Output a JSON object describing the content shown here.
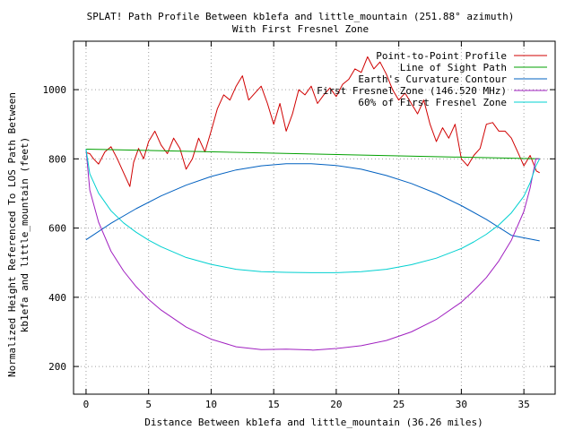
{
  "chart_data": {
    "type": "line",
    "title": "SPLAT! Path Profile Between kb1efa and little_mountain (251.88° azimuth)",
    "subtitle": "With First Fresnel Zone",
    "xlabel": "Distance Between kb1efa and little_mountain (36.26 miles)",
    "ylabel": [
      "Normalized Height Referenced To LOS Path Between",
      "kb1efa and little_mountain (feet)"
    ],
    "xlim": [
      -1,
      37.5
    ],
    "ylim": [
      120,
      1140
    ],
    "xticks": [
      0,
      5,
      10,
      15,
      20,
      25,
      30,
      35
    ],
    "yticks": [
      200,
      400,
      600,
      800,
      1000
    ],
    "grid": true,
    "legend_position": "top-right",
    "series": [
      {
        "name": "Point-to-Point Profile",
        "color": "#d00000",
        "x": [
          0,
          0.3,
          0.6,
          1.0,
          1.5,
          2.0,
          2.5,
          3.0,
          3.5,
          3.8,
          4.2,
          4.6,
          5.0,
          5.5,
          6.0,
          6.5,
          7.0,
          7.5,
          8.0,
          8.5,
          9.0,
          9.5,
          10.0,
          10.5,
          11.0,
          11.5,
          12.0,
          12.5,
          13.0,
          13.5,
          14.0,
          14.5,
          15.0,
          15.5,
          16.0,
          16.5,
          17.0,
          17.5,
          18.0,
          18.5,
          19.0,
          19.5,
          20.0,
          20.5,
          21.0,
          21.5,
          22.0,
          22.5,
          23.0,
          23.5,
          24.0,
          24.5,
          25.0,
          25.5,
          26.0,
          26.5,
          27.0,
          27.5,
          28.0,
          28.5,
          29.0,
          29.5,
          30.0,
          30.5,
          31.0,
          31.5,
          32.0,
          32.5,
          33.0,
          33.5,
          34.0,
          34.5,
          35.0,
          35.5,
          36.0,
          36.26
        ],
        "y": [
          818,
          815,
          800,
          785,
          820,
          835,
          800,
          760,
          720,
          790,
          830,
          800,
          850,
          880,
          840,
          815,
          860,
          830,
          770,
          800,
          860,
          820,
          880,
          945,
          985,
          970,
          1010,
          1040,
          970,
          990,
          1010,
          960,
          900,
          960,
          880,
          930,
          1000,
          985,
          1010,
          960,
          985,
          1005,
          980,
          1015,
          1030,
          1060,
          1050,
          1095,
          1060,
          1080,
          1045,
          1000,
          970,
          990,
          960,
          930,
          970,
          900,
          850,
          890,
          860,
          900,
          800,
          780,
          810,
          830,
          900,
          905,
          880,
          880,
          860,
          820,
          780,
          810,
          765,
          760
        ]
      },
      {
        "name": "Line of Sight Path",
        "color": "#00a000",
        "x": [
          0,
          36.26
        ],
        "y": [
          828,
          800
        ]
      },
      {
        "name": "Earth's Curvature Contour",
        "color": "#0060c0",
        "x": [
          0,
          2,
          4,
          6,
          8,
          10,
          12,
          14,
          16,
          18,
          20,
          22,
          24,
          26,
          28,
          30,
          32,
          34,
          36.26
        ],
        "y": [
          566,
          614,
          656,
          693,
          724,
          749,
          768,
          780,
          786,
          786,
          781,
          770,
          752,
          729,
          700,
          665,
          625,
          579,
          563
        ]
      },
      {
        "name": "First Fresnel Zone (146.520 MHz)",
        "color": "#a020c0",
        "x": [
          0,
          0.3,
          1,
          2,
          3,
          4,
          5,
          6,
          8,
          10,
          12,
          14,
          16,
          18,
          18.13,
          20,
          22,
          24,
          26,
          28,
          30,
          31,
          32,
          33,
          34,
          35,
          35.5,
          35.96,
          36.26
        ],
        "y": [
          828,
          710,
          617,
          533,
          476,
          431,
          394,
          363,
          314,
          279,
          257,
          249,
          250,
          248,
          247,
          252,
          260,
          275,
          300,
          336,
          386,
          419,
          457,
          505,
          565,
          648,
          716,
          800,
          800
        ]
      },
      {
        "name": "60% of First Fresnel Zone",
        "color": "#00d0d0",
        "x": [
          0,
          0.3,
          1,
          2,
          3,
          4,
          5,
          6,
          8,
          10,
          12,
          14,
          16,
          18,
          18.13,
          20,
          22,
          24,
          26,
          28,
          30,
          31,
          32,
          33,
          34,
          35,
          35.5,
          35.96,
          36.26
        ],
        "y": [
          828,
          757,
          701,
          650,
          615,
          588,
          565,
          546,
          515,
          495,
          481,
          474,
          472,
          471,
          471,
          471,
          474,
          481,
          494,
          513,
          541,
          560,
          582,
          609,
          644,
          692,
          731,
          780,
          800
        ]
      }
    ]
  }
}
